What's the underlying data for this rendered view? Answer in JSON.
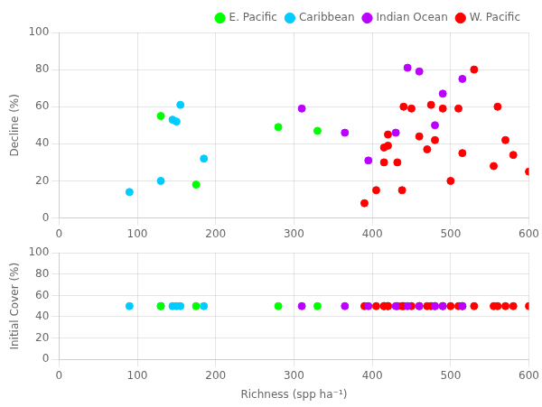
{
  "chart_data": {
    "type": "scatter3d",
    "xlabel": "Richness (spp ha⁻¹)",
    "ylabel": "Initial Cover (%)",
    "zlabel": "Decline (%)",
    "xlim": [
      0,
      600
    ],
    "xticks": [
      0,
      100,
      200,
      300,
      400,
      500,
      600
    ],
    "ylim": [
      0,
      100
    ],
    "yticks": [
      0,
      20,
      40,
      60,
      80,
      100
    ],
    "zlim": [
      0,
      100
    ],
    "zticks": [
      0,
      20,
      40,
      60,
      80,
      100
    ],
    "grid": true,
    "legend": "upper right",
    "series": [
      {
        "name": "E. Pacific",
        "color": "#00FF00",
        "x": [
          130,
          175,
          280,
          330
        ],
        "y": [
          50,
          50,
          50,
          50
        ],
        "z": [
          55,
          18,
          49,
          47
        ]
      },
      {
        "name": "Caribbean",
        "color": "#00CCFF",
        "x": [
          90,
          130,
          145,
          150,
          155,
          185
        ],
        "y": [
          50,
          50,
          50,
          50,
          50,
          50
        ],
        "z": [
          14,
          20,
          53,
          52,
          61,
          32
        ]
      },
      {
        "name": "Indian Ocean",
        "color": "#BB00FF",
        "x": [
          310,
          365,
          395,
          430,
          445,
          460,
          480,
          490,
          515
        ],
        "y": [
          50,
          50,
          50,
          50,
          50,
          50,
          50,
          50,
          50
        ],
        "z": [
          59,
          46,
          31,
          46,
          81,
          79,
          50,
          67,
          75
        ]
      },
      {
        "name": "W. Pacific",
        "color": "#FF0000",
        "x": [
          390,
          405,
          415,
          415,
          420,
          420,
          432,
          438,
          440,
          450,
          460,
          470,
          475,
          480,
          490,
          500,
          510,
          515,
          530,
          555,
          560,
          570,
          580,
          600
        ],
        "y": [
          50,
          50,
          50,
          50,
          50,
          50,
          50,
          50,
          50,
          50,
          50,
          50,
          50,
          50,
          50,
          50,
          50,
          50,
          50,
          50,
          50,
          50,
          50,
          50
        ],
        "z": [
          8,
          15,
          38,
          30,
          45,
          39,
          30,
          15,
          60,
          59,
          44,
          37,
          61,
          42,
          59,
          20,
          59,
          35,
          80,
          28,
          60,
          42,
          34,
          25
        ]
      }
    ]
  }
}
